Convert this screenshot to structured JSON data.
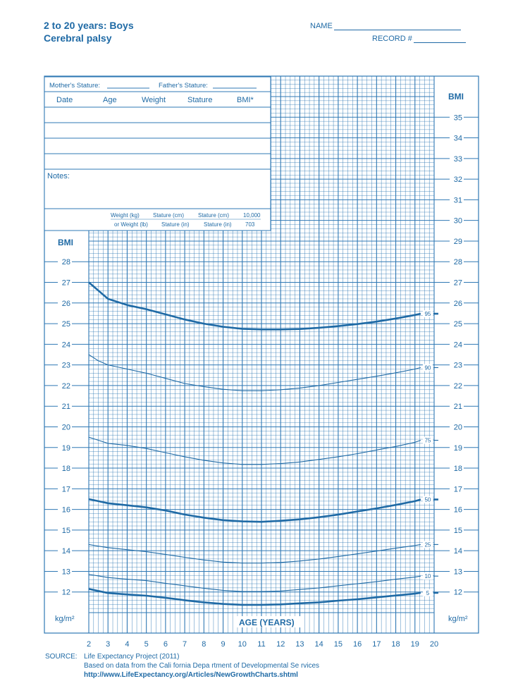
{
  "header": {
    "title_line1": "2 to 20 years: Boys",
    "title_line2": "Cerebral palsy",
    "name_label": "NAME",
    "record_label": "RECORD #"
  },
  "form": {
    "mother_stature": "Mother's Stature:",
    "father_stature": "Father's Stature:",
    "columns": [
      "Date",
      "Age",
      "Weight",
      "Stature",
      "BMI*"
    ],
    "notes_label": "Notes:",
    "formula": {
      "r1": [
        "Weight (kg)",
        "Stature (cm)",
        "Stature (cm)",
        "10,000"
      ],
      "r2": [
        "or Weight (lb)",
        "Stature (in)",
        "Stature (in)",
        "703"
      ]
    }
  },
  "colors": {
    "ink": "#1f6aa5",
    "grid": "#2f78b4"
  },
  "source": {
    "label": "SOURCE:",
    "line1": "Life Expectancy Project (2011)",
    "line2": "Based on data from the Cali    fornia Depa rtment of Developmental Se rvices",
    "line3": "http://www.LifeExpectancy.org/Articles/NewGrowthCharts.shtml"
  },
  "chart_data": {
    "type": "line",
    "xlabel": "AGE (YEARS)",
    "ylabel": "BMI",
    "yunit": "kg/m²",
    "xlim": [
      2,
      20
    ],
    "ylim": [
      11,
      36
    ],
    "x_ticks": [
      "2",
      "3",
      "4",
      "5",
      "6",
      "7",
      "8",
      "9",
      "10",
      "11",
      "12",
      "13",
      "14",
      "15",
      "16",
      "17",
      "18",
      "19",
      "20"
    ],
    "left_y_ticks": [
      "12",
      "13",
      "14",
      "15",
      "16",
      "17",
      "18",
      "19",
      "20",
      "21",
      "22",
      "23",
      "24",
      "25",
      "26",
      "27",
      "28"
    ],
    "right_y_ticks": [
      "12",
      "13",
      "14",
      "15",
      "16",
      "17",
      "18",
      "19",
      "20",
      "21",
      "22",
      "23",
      "24",
      "25",
      "26",
      "27",
      "28",
      "29",
      "30",
      "31",
      "32",
      "33",
      "34",
      "35"
    ],
    "x": [
      2,
      2.5,
      3,
      4,
      5,
      6,
      7,
      8,
      9,
      10,
      11,
      12,
      13,
      14,
      15,
      16,
      17,
      18,
      19,
      19.3
    ],
    "series": [
      {
        "name": "95",
        "bold": true,
        "values": [
          27.0,
          26.6,
          26.2,
          25.9,
          25.7,
          25.45,
          25.2,
          25.0,
          24.85,
          24.75,
          24.72,
          24.72,
          24.74,
          24.8,
          24.88,
          24.98,
          25.1,
          25.25,
          25.42,
          25.48
        ]
      },
      {
        "name": "90",
        "bold": false,
        "values": [
          23.5,
          23.2,
          23.0,
          22.8,
          22.6,
          22.35,
          22.1,
          21.95,
          21.82,
          21.75,
          21.75,
          21.8,
          21.88,
          22.0,
          22.15,
          22.3,
          22.45,
          22.62,
          22.8,
          22.87
        ]
      },
      {
        "name": "75",
        "bold": false,
        "values": [
          19.5,
          19.35,
          19.2,
          19.1,
          18.95,
          18.75,
          18.55,
          18.38,
          18.25,
          18.18,
          18.18,
          18.22,
          18.3,
          18.42,
          18.55,
          18.7,
          18.88,
          19.05,
          19.25,
          19.35
        ]
      },
      {
        "name": "50",
        "bold": true,
        "values": [
          16.5,
          16.4,
          16.3,
          16.2,
          16.1,
          15.95,
          15.75,
          15.6,
          15.48,
          15.42,
          15.4,
          15.45,
          15.52,
          15.62,
          15.75,
          15.9,
          16.05,
          16.22,
          16.4,
          16.48
        ]
      },
      {
        "name": "25",
        "bold": false,
        "values": [
          14.3,
          14.22,
          14.15,
          14.05,
          13.95,
          13.82,
          13.68,
          13.55,
          13.45,
          13.4,
          13.4,
          13.43,
          13.5,
          13.6,
          13.72,
          13.85,
          13.98,
          14.12,
          14.25,
          14.3
        ]
      },
      {
        "name": "10",
        "bold": false,
        "values": [
          12.85,
          12.78,
          12.7,
          12.62,
          12.55,
          12.42,
          12.3,
          12.18,
          12.08,
          12.02,
          12.02,
          12.05,
          12.12,
          12.2,
          12.3,
          12.4,
          12.5,
          12.62,
          12.72,
          12.77
        ]
      },
      {
        "name": "5",
        "bold": true,
        "values": [
          12.15,
          12.05,
          11.95,
          11.88,
          11.82,
          11.72,
          11.6,
          11.5,
          11.42,
          11.38,
          11.38,
          11.4,
          11.45,
          11.5,
          11.58,
          11.65,
          11.74,
          11.83,
          11.92,
          11.96
        ]
      }
    ]
  }
}
